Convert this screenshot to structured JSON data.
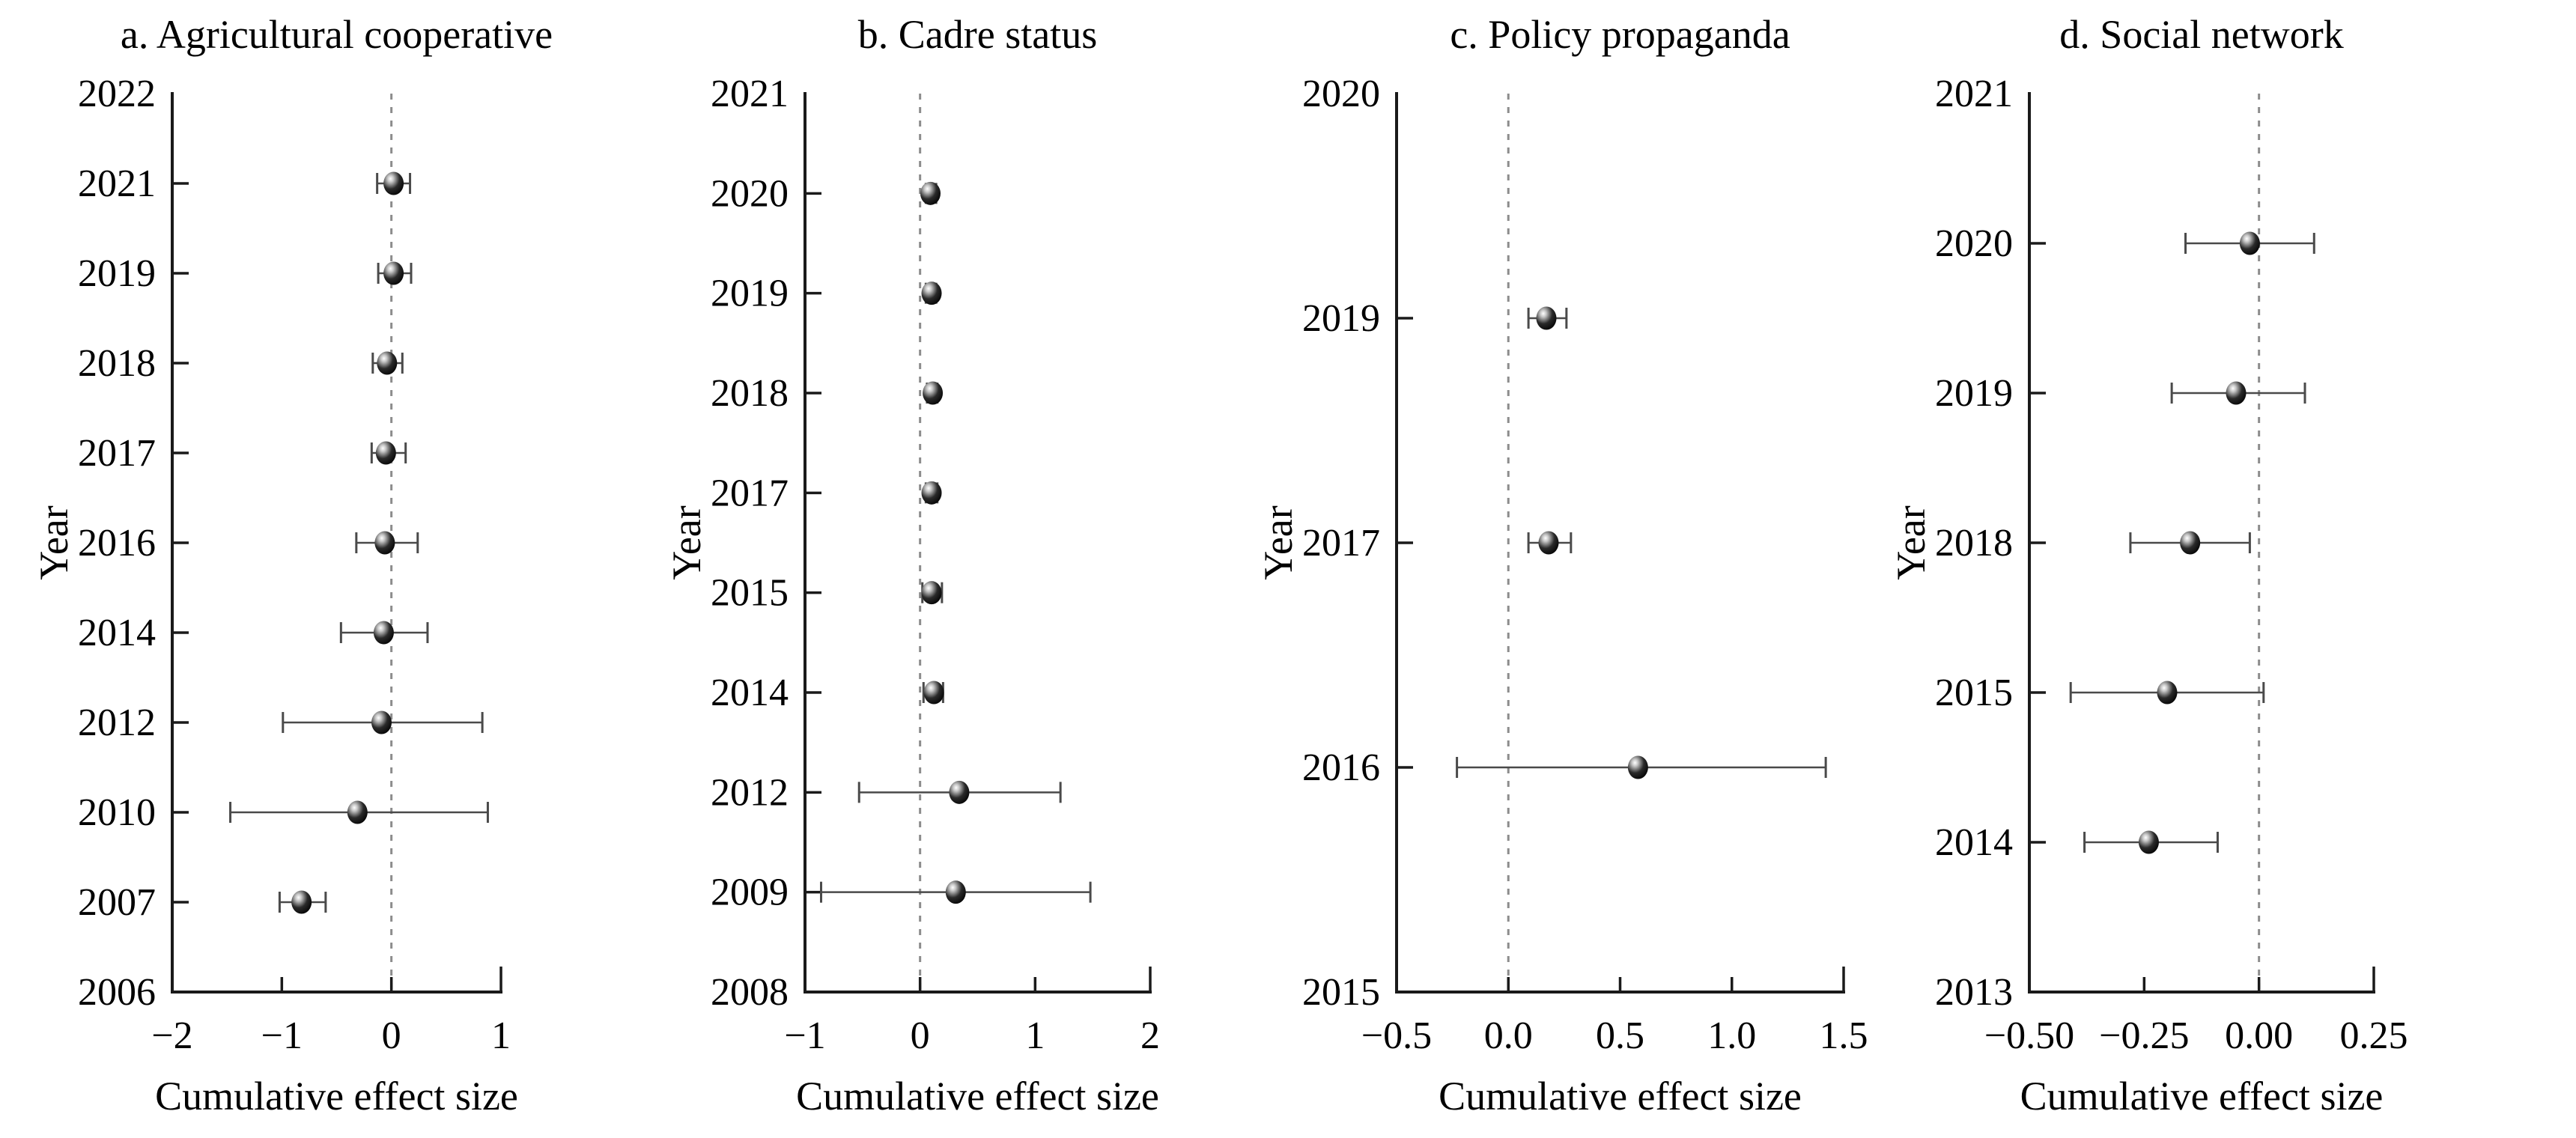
{
  "figure": {
    "kind": "cumulative-meta-analysis-forest-plots",
    "background": "#ffffff",
    "text_color": "#000000",
    "axis_color": "#1a1a1a",
    "zero_line_color": "#8c8c8c",
    "error_bar_color": "#4a4a4a",
    "marker_style": "glossy-black-sphere"
  },
  "chart_data": [
    {
      "type": "scatter",
      "panel": "a",
      "title": "a. Agricultural cooperative",
      "xlabel": "Cumulative effect size",
      "ylabel": "Year",
      "x_ticks": [
        -2,
        -1,
        0,
        1
      ],
      "x_tick_labels": [
        "−2",
        "−1",
        "0",
        "1"
      ],
      "xlim": [
        -2,
        1
      ],
      "zero_line": 0,
      "grid": false,
      "y_categories": [
        "2022",
        "2021",
        "2019",
        "2018",
        "2017",
        "2016",
        "2014",
        "2012",
        "2010",
        "2007",
        "2006"
      ],
      "points": [
        {
          "year": "2021",
          "value": 0.02,
          "ci_low": -0.13,
          "ci_high": 0.17
        },
        {
          "year": "2019",
          "value": 0.02,
          "ci_low": -0.12,
          "ci_high": 0.18
        },
        {
          "year": "2018",
          "value": -0.04,
          "ci_low": -0.17,
          "ci_high": 0.1
        },
        {
          "year": "2017",
          "value": -0.05,
          "ci_low": -0.18,
          "ci_high": 0.13
        },
        {
          "year": "2016",
          "value": -0.06,
          "ci_low": -0.32,
          "ci_high": 0.24
        },
        {
          "year": "2014",
          "value": -0.07,
          "ci_low": -0.46,
          "ci_high": 0.33
        },
        {
          "year": "2012",
          "value": -0.09,
          "ci_low": -0.99,
          "ci_high": 0.83
        },
        {
          "year": "2010",
          "value": -0.31,
          "ci_low": -1.47,
          "ci_high": 0.88
        },
        {
          "year": "2007",
          "value": -0.82,
          "ci_low": -1.02,
          "ci_high": -0.6
        }
      ]
    },
    {
      "type": "scatter",
      "panel": "b",
      "title": "b. Cadre status",
      "xlabel": "Cumulative effect size",
      "ylabel": "Year",
      "x_ticks": [
        -1,
        0,
        1,
        2
      ],
      "x_tick_labels": [
        "−1",
        "0",
        "1",
        "2"
      ],
      "xlim": [
        -1,
        2
      ],
      "zero_line": 0,
      "grid": false,
      "y_categories": [
        "2021",
        "2020",
        "2019",
        "2018",
        "2017",
        "2015",
        "2014",
        "2012",
        "2009",
        "2008"
      ],
      "points": [
        {
          "year": "2020",
          "value": 0.09,
          "ci_low": 0.05,
          "ci_high": 0.14
        },
        {
          "year": "2019",
          "value": 0.1,
          "ci_low": 0.05,
          "ci_high": 0.14
        },
        {
          "year": "2018",
          "value": 0.11,
          "ci_low": 0.06,
          "ci_high": 0.15
        },
        {
          "year": "2017",
          "value": 0.1,
          "ci_low": 0.05,
          "ci_high": 0.15
        },
        {
          "year": "2015",
          "value": 0.1,
          "ci_low": 0.02,
          "ci_high": 0.19
        },
        {
          "year": "2014",
          "value": 0.12,
          "ci_low": 0.03,
          "ci_high": 0.2
        },
        {
          "year": "2012",
          "value": 0.34,
          "ci_low": -0.53,
          "ci_high": 1.22
        },
        {
          "year": "2009",
          "value": 0.31,
          "ci_low": -0.86,
          "ci_high": 1.48
        }
      ]
    },
    {
      "type": "scatter",
      "panel": "c",
      "title": "c. Policy propaganda",
      "xlabel": "Cumulative effect size",
      "ylabel": "Year",
      "x_ticks": [
        -0.5,
        0,
        0.5,
        1,
        1.5
      ],
      "x_tick_labels": [
        "−0.5",
        "0.0",
        "0.5",
        "1.0",
        "1.5"
      ],
      "xlim": [
        -0.5,
        1.5
      ],
      "zero_line": 0,
      "grid": false,
      "y_categories": [
        "2020",
        "2019",
        "2017",
        "2016",
        "2015"
      ],
      "points": [
        {
          "year": "2019",
          "value": 0.17,
          "ci_low": 0.09,
          "ci_high": 0.26
        },
        {
          "year": "2017",
          "value": 0.18,
          "ci_low": 0.09,
          "ci_high": 0.28
        },
        {
          "year": "2016",
          "value": 0.58,
          "ci_low": -0.23,
          "ci_high": 1.42
        }
      ]
    },
    {
      "type": "scatter",
      "panel": "d",
      "title": "d. Social network",
      "xlabel": "Cumulative effect size",
      "ylabel": "Year",
      "x_ticks": [
        -0.5,
        -0.25,
        0,
        0.25
      ],
      "x_tick_labels": [
        "−0.50",
        "−0.25",
        "0.00",
        "0.25"
      ],
      "xlim": [
        -0.5,
        0.25
      ],
      "zero_line": 0,
      "grid": false,
      "y_categories": [
        "2021",
        "2020",
        "2019",
        "2018",
        "2015",
        "2014",
        "2013"
      ],
      "points": [
        {
          "year": "2020",
          "value": -0.02,
          "ci_low": -0.16,
          "ci_high": 0.12
        },
        {
          "year": "2019",
          "value": -0.05,
          "ci_low": -0.19,
          "ci_high": 0.1
        },
        {
          "year": "2018",
          "value": -0.15,
          "ci_low": -0.28,
          "ci_high": -0.02
        },
        {
          "year": "2015",
          "value": -0.2,
          "ci_low": -0.41,
          "ci_high": 0.01
        },
        {
          "year": "2014",
          "value": -0.24,
          "ci_low": -0.38,
          "ci_high": -0.09
        }
      ]
    }
  ]
}
